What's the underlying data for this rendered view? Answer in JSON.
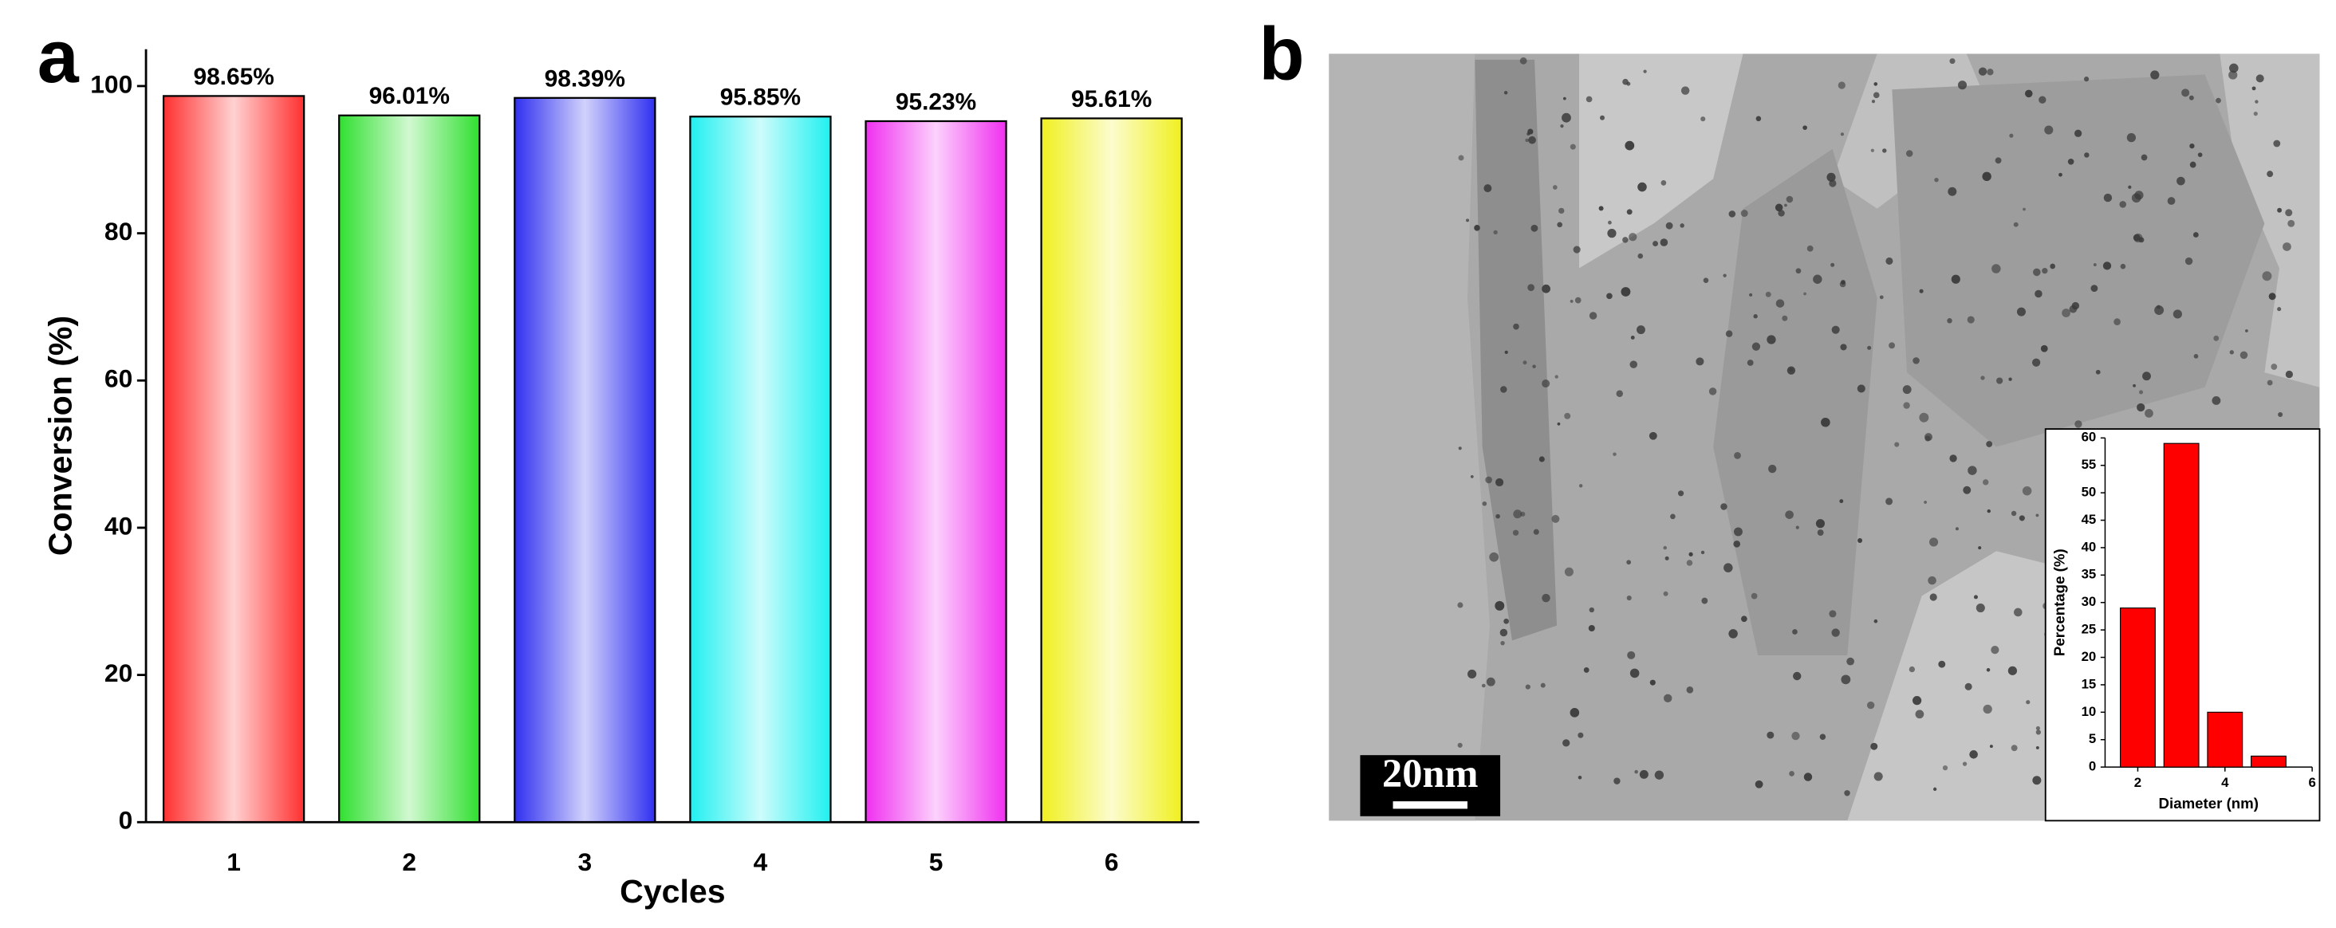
{
  "chart_data": [
    {
      "type": "bar",
      "panel_label": "a",
      "categories": [
        "1",
        "2",
        "3",
        "4",
        "5",
        "6"
      ],
      "values": [
        98.65,
        96.01,
        98.39,
        95.85,
        95.23,
        95.61
      ],
      "value_labels": [
        "98.65%",
        "96.01%",
        "98.39%",
        "95.85%",
        "95.23%",
        "95.61%"
      ],
      "colors": [
        "#ff3030",
        "#30e030",
        "#3030f0",
        "#20f0f0",
        "#f030f0",
        "#f0f020"
      ],
      "x_label": "Cycles",
      "y_label": "Conversion (%)",
      "ylim": [
        0,
        105
      ],
      "yticks": [
        0,
        20,
        40,
        60,
        80,
        100
      ]
    },
    {
      "type": "bar",
      "panel_label": "b",
      "scale_bar": "20nm",
      "x": [
        2,
        3,
        4,
        5
      ],
      "values": [
        29,
        59,
        10,
        2
      ],
      "color": "#ff0000",
      "x_label": "Diameter (nm)",
      "y_label": "Percentage (%)",
      "xlim": [
        1.25,
        6
      ],
      "xticks": [
        2,
        4,
        6
      ],
      "ylim": [
        0,
        60
      ],
      "yticks": [
        0,
        5,
        10,
        15,
        20,
        25,
        30,
        35,
        40,
        45,
        50,
        55,
        60
      ]
    }
  ]
}
